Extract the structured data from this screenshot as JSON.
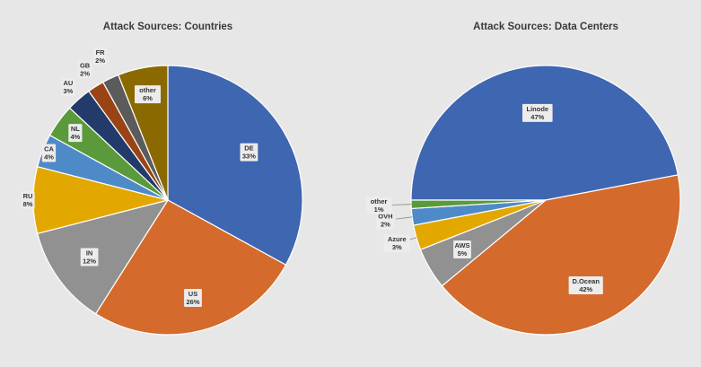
{
  "chart_data": [
    {
      "type": "pie",
      "title": "Attack Sources: Countries",
      "start_angle_deg": 0,
      "direction": "clockwise",
      "slices": [
        {
          "label": "DE",
          "value": 33,
          "display": "33%",
          "color": "#3f66b0"
        },
        {
          "label": "US",
          "value": 26,
          "display": "26%",
          "color": "#d46b2c"
        },
        {
          "label": "IN",
          "value": 12,
          "display": "12%",
          "color": "#919191"
        },
        {
          "label": "RU",
          "value": 8,
          "display": "8%",
          "color": "#e3a800"
        },
        {
          "label": "CA",
          "value": 4,
          "display": "4%",
          "color": "#4f8ac8"
        },
        {
          "label": "NL",
          "value": 4,
          "display": "4%",
          "color": "#5a9a3a"
        },
        {
          "label": "AU",
          "value": 3,
          "display": "3%",
          "color": "#233b6a"
        },
        {
          "label": "GB",
          "value": 2,
          "display": "2%",
          "color": "#9a4314"
        },
        {
          "label": "FR",
          "value": 2,
          "display": "2%",
          "color": "#5b5b5b"
        },
        {
          "label": "other",
          "value": 6,
          "display": "6%",
          "color": "#8a6a00"
        }
      ]
    },
    {
      "type": "pie",
      "title": "Attack Sources: Data Centers",
      "start_angle_deg": 270,
      "direction": "clockwise",
      "slices": [
        {
          "label": "Linode",
          "value": 47,
          "display": "47%",
          "color": "#3f66b0"
        },
        {
          "label": "D.Ocean",
          "value": 42,
          "display": "42%",
          "color": "#d46b2c"
        },
        {
          "label": "AWS",
          "value": 5,
          "display": "5%",
          "color": "#919191"
        },
        {
          "label": "Azure",
          "value": 3,
          "display": "3%",
          "color": "#e3a800"
        },
        {
          "label": "OVH",
          "value": 2,
          "display": "2%",
          "color": "#4f8ac8"
        },
        {
          "label": "other",
          "value": 1,
          "display": "1%",
          "color": "#5a9a3a"
        }
      ]
    }
  ]
}
